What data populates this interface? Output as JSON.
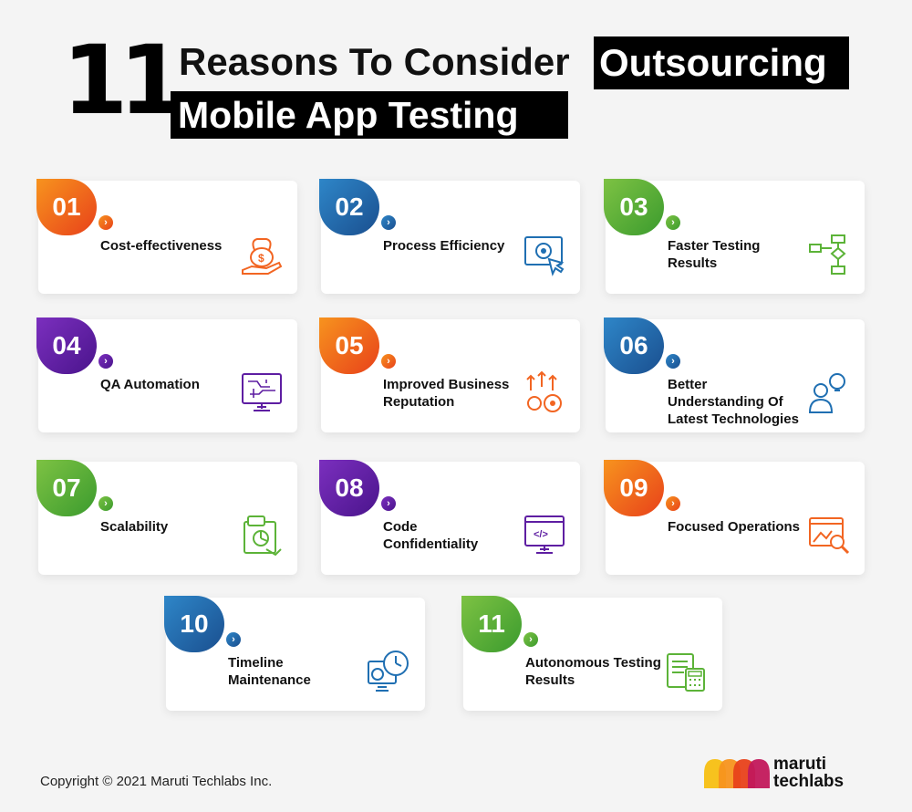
{
  "title": {
    "number": "11",
    "line1": "Reasons To Consider",
    "highlight1": "Outsourcing",
    "highlight2": "Mobile App Testing"
  },
  "cards": [
    {
      "num": "01",
      "lines": [
        "Cost-effectiveness"
      ],
      "color": "orange",
      "icon": "money-bag-hand-icon"
    },
    {
      "num": "02",
      "lines": [
        "Process Efficiency"
      ],
      "color": "blue",
      "icon": "gear-screen-click-icon"
    },
    {
      "num": "03",
      "lines": [
        "Faster Testing",
        "Results"
      ],
      "color": "green",
      "icon": "flowchart-icon"
    },
    {
      "num": "04",
      "lines": [
        "QA Automation"
      ],
      "color": "purple",
      "icon": "circuit-monitor-icon"
    },
    {
      "num": "05",
      "lines": [
        "Improved Business",
        "Reputation"
      ],
      "color": "orange",
      "icon": "gears-arrows-up-icon"
    },
    {
      "num": "06",
      "lines": [
        "Better",
        "Understanding Of",
        "Latest Technologies"
      ],
      "color": "blue",
      "icon": "person-bulb-icon"
    },
    {
      "num": "07",
      "lines": [
        "Scalability"
      ],
      "color": "green",
      "icon": "chart-document-icon"
    },
    {
      "num": "08",
      "lines": [
        "Code",
        "Confidentiality"
      ],
      "color": "purple",
      "icon": "code-monitor-icon"
    },
    {
      "num": "09",
      "lines": [
        "Focused Operations"
      ],
      "color": "orange",
      "icon": "image-magnifier-icon"
    },
    {
      "num": "10",
      "lines": [
        "Timeline",
        "Maintenance"
      ],
      "color": "blue",
      "icon": "clock-gear-monitor-icon"
    },
    {
      "num": "11",
      "lines": [
        "Autonomous Testing",
        "Results"
      ],
      "color": "green",
      "icon": "calculator-document-icon"
    }
  ],
  "footer": {
    "copyright": "Copyright © 2021 Maruti Techlabs Inc."
  },
  "logo": {
    "line1": "maruti",
    "line2": "techlabs"
  },
  "colors": {
    "orange": "#f26522",
    "blue": "#1f6fb2",
    "green": "#5cb338",
    "purple": "#5e1ea2"
  }
}
